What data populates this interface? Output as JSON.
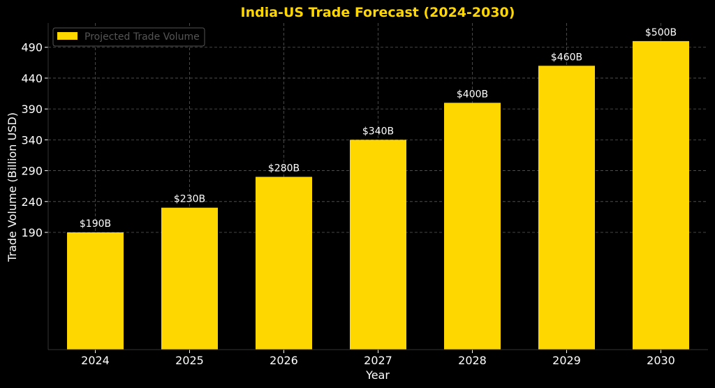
{
  "chart_data": {
    "type": "bar",
    "title": "India-US Trade Forecast (2024-2030)",
    "xlabel": "Year",
    "ylabel": "Trade Volume (Billion USD)",
    "categories": [
      "2024",
      "2025",
      "2026",
      "2027",
      "2028",
      "2029",
      "2030"
    ],
    "series": [
      {
        "name": "Projected Trade Volume",
        "values": [
          190,
          230,
          280,
          340,
          400,
          460,
          500
        ],
        "color": "#FFD700"
      }
    ],
    "data_labels": [
      "$190B",
      "$230B",
      "$280B",
      "$340B",
      "$400B",
      "$460B",
      "$500B"
    ],
    "yticks": [
      190,
      240,
      290,
      340,
      390,
      440,
      490
    ],
    "ylim": [
      0,
      520
    ],
    "grid": true,
    "legend_position": "top-left"
  },
  "colors": {
    "background": "#000000",
    "bar": "#FFD700",
    "title": "#FFD700",
    "text": "#ffffff"
  }
}
